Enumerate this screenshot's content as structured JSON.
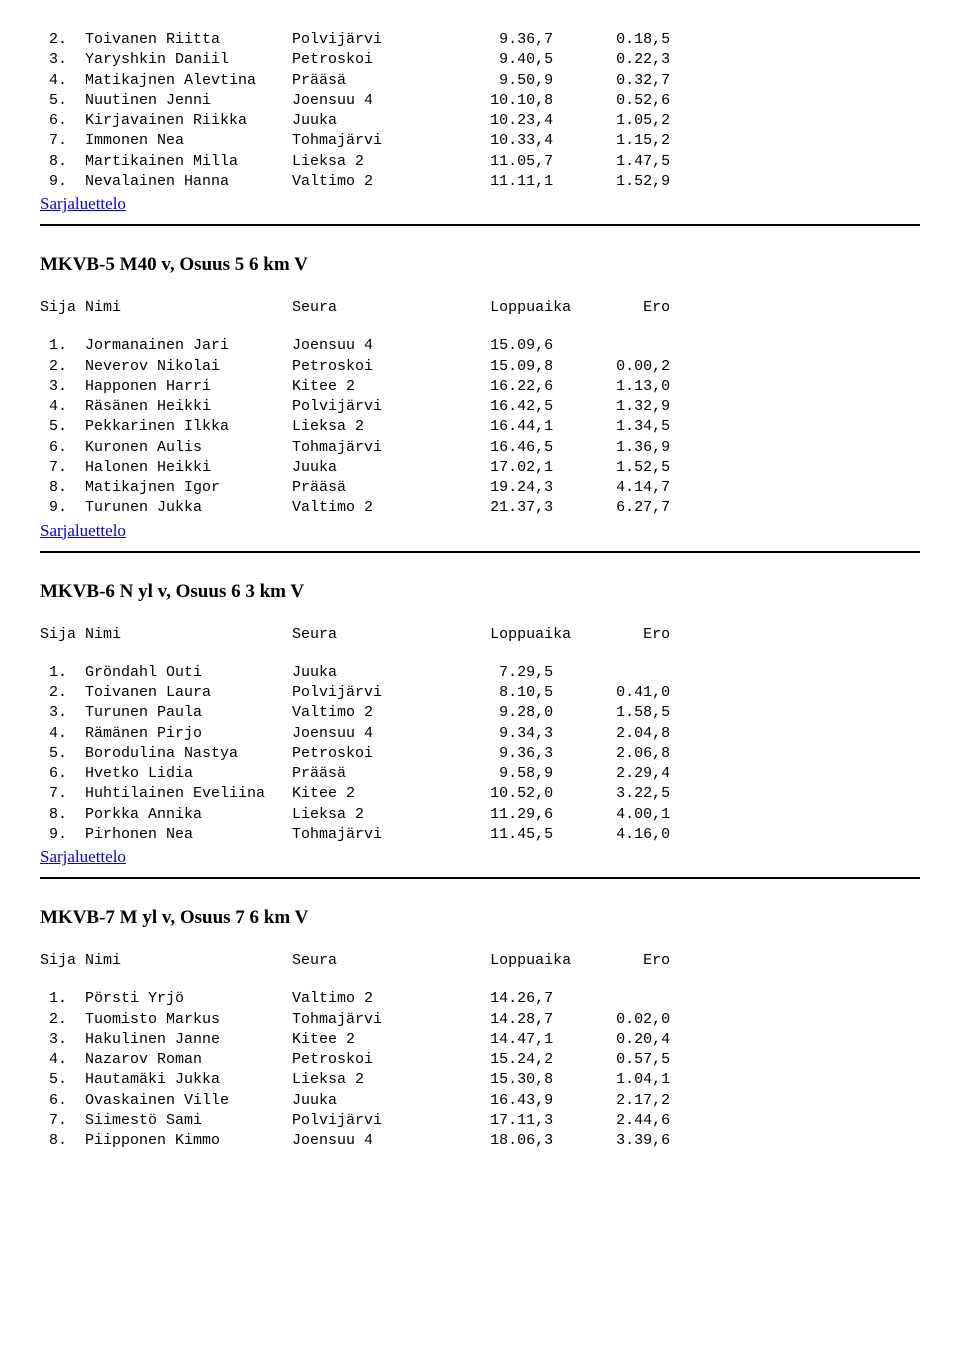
{
  "columns": {
    "sija": "Sija",
    "nimi": "Nimi",
    "seura": "Seura",
    "loppuaika": "Loppuaika",
    "ero": "Ero"
  },
  "link_label": "Sarjaluettelo",
  "sections": [
    {
      "rows": [
        {
          "pos": " 2.",
          "name": "Toivanen Riitta",
          "club": "Polvijärvi",
          "time": " 9.36,7",
          "gap": "0.18,5"
        },
        {
          "pos": " 3.",
          "name": "Yaryshkin Daniil",
          "club": "Petroskoi",
          "time": " 9.40,5",
          "gap": "0.22,3"
        },
        {
          "pos": " 4.",
          "name": "Matikajnen Alevtina",
          "club": "Prääsä",
          "time": " 9.50,9",
          "gap": "0.32,7"
        },
        {
          "pos": " 5.",
          "name": "Nuutinen Jenni",
          "club": "Joensuu 4",
          "time": "10.10,8",
          "gap": "0.52,6"
        },
        {
          "pos": " 6.",
          "name": "Kirjavainen Riikka",
          "club": "Juuka",
          "time": "10.23,4",
          "gap": "1.05,2"
        },
        {
          "pos": " 7.",
          "name": "Immonen Nea",
          "club": "Tohmajärvi",
          "time": "10.33,4",
          "gap": "1.15,2"
        },
        {
          "pos": " 8.",
          "name": "Martikainen Milla",
          "club": "Lieksa 2",
          "time": "11.05,7",
          "gap": "1.47,5"
        },
        {
          "pos": " 9.",
          "name": "Nevalainen Hanna",
          "club": "Valtimo 2",
          "time": "11.11,1",
          "gap": "1.52,9"
        }
      ]
    },
    {
      "title": "MKVB-5 M40 v, Osuus 5 6 km V",
      "rows": [
        {
          "pos": " 1.",
          "name": "Jormanainen Jari",
          "club": "Joensuu 4",
          "time": "15.09,6",
          "gap": ""
        },
        {
          "pos": " 2.",
          "name": "Neverov Nikolai",
          "club": "Petroskoi",
          "time": "15.09,8",
          "gap": "0.00,2"
        },
        {
          "pos": " 3.",
          "name": "Happonen Harri",
          "club": "Kitee 2",
          "time": "16.22,6",
          "gap": "1.13,0"
        },
        {
          "pos": " 4.",
          "name": "Räsänen Heikki",
          "club": "Polvijärvi",
          "time": "16.42,5",
          "gap": "1.32,9"
        },
        {
          "pos": " 5.",
          "name": "Pekkarinen Ilkka",
          "club": "Lieksa 2",
          "time": "16.44,1",
          "gap": "1.34,5"
        },
        {
          "pos": " 6.",
          "name": "Kuronen Aulis",
          "club": "Tohmajärvi",
          "time": "16.46,5",
          "gap": "1.36,9"
        },
        {
          "pos": " 7.",
          "name": "Halonen Heikki",
          "club": "Juuka",
          "time": "17.02,1",
          "gap": "1.52,5"
        },
        {
          "pos": " 8.",
          "name": "Matikajnen Igor",
          "club": "Prääsä",
          "time": "19.24,3",
          "gap": "4.14,7"
        },
        {
          "pos": " 9.",
          "name": "Turunen Jukka",
          "club": "Valtimo 2",
          "time": "21.37,3",
          "gap": "6.27,7"
        }
      ]
    },
    {
      "title": "MKVB-6 N yl v, Osuus 6 3 km V",
      "rows": [
        {
          "pos": " 1.",
          "name": "Gröndahl Outi",
          "club": "Juuka",
          "time": " 7.29,5",
          "gap": ""
        },
        {
          "pos": " 2.",
          "name": "Toivanen Laura",
          "club": "Polvijärvi",
          "time": " 8.10,5",
          "gap": "0.41,0"
        },
        {
          "pos": " 3.",
          "name": "Turunen Paula",
          "club": "Valtimo 2",
          "time": " 9.28,0",
          "gap": "1.58,5"
        },
        {
          "pos": " 4.",
          "name": "Rämänen Pirjo",
          "club": "Joensuu 4",
          "time": " 9.34,3",
          "gap": "2.04,8"
        },
        {
          "pos": " 5.",
          "name": "Borodulina Nastya",
          "club": "Petroskoi",
          "time": " 9.36,3",
          "gap": "2.06,8"
        },
        {
          "pos": " 6.",
          "name": "Hvetko Lidia",
          "club": "Prääsä",
          "time": " 9.58,9",
          "gap": "2.29,4"
        },
        {
          "pos": " 7.",
          "name": "Huhtilainen Eveliina",
          "club": "Kitee 2",
          "time": "10.52,0",
          "gap": "3.22,5"
        },
        {
          "pos": " 8.",
          "name": "Porkka Annika",
          "club": "Lieksa 2",
          "time": "11.29,6",
          "gap": "4.00,1"
        },
        {
          "pos": " 9.",
          "name": "Pirhonen Nea",
          "club": "Tohmajärvi",
          "time": "11.45,5",
          "gap": "4.16,0"
        }
      ]
    },
    {
      "title": "MKVB-7 M yl v, Osuus 7 6 km V",
      "rows": [
        {
          "pos": " 1.",
          "name": "Pörsti Yrjö",
          "club": "Valtimo 2",
          "time": "14.26,7",
          "gap": ""
        },
        {
          "pos": " 2.",
          "name": "Tuomisto Markus",
          "club": "Tohmajärvi",
          "time": "14.28,7",
          "gap": "0.02,0"
        },
        {
          "pos": " 3.",
          "name": "Hakulinen Janne",
          "club": "Kitee 2",
          "time": "14.47,1",
          "gap": "0.20,4"
        },
        {
          "pos": " 4.",
          "name": "Nazarov Roman",
          "club": "Petroskoi",
          "time": "15.24,2",
          "gap": "0.57,5"
        },
        {
          "pos": " 5.",
          "name": "Hautamäki Jukka",
          "club": "Lieksa 2",
          "time": "15.30,8",
          "gap": "1.04,1"
        },
        {
          "pos": " 6.",
          "name": "Ovaskainen Ville",
          "club": "Juuka",
          "time": "16.43,9",
          "gap": "2.17,2"
        },
        {
          "pos": " 7.",
          "name": "Siimestö Sami",
          "club": "Polvijärvi",
          "time": "17.11,3",
          "gap": "2.44,6"
        },
        {
          "pos": " 8.",
          "name": "Piipponen Kimmo",
          "club": "Joensuu 4",
          "time": "18.06,3",
          "gap": "3.39,6"
        }
      ],
      "no_link": true
    }
  ],
  "layout": {
    "col_pos_w": 4,
    "col_name_w": 23,
    "col_club_w": 22,
    "col_time_w": 11,
    "col_gap_w": 9
  }
}
